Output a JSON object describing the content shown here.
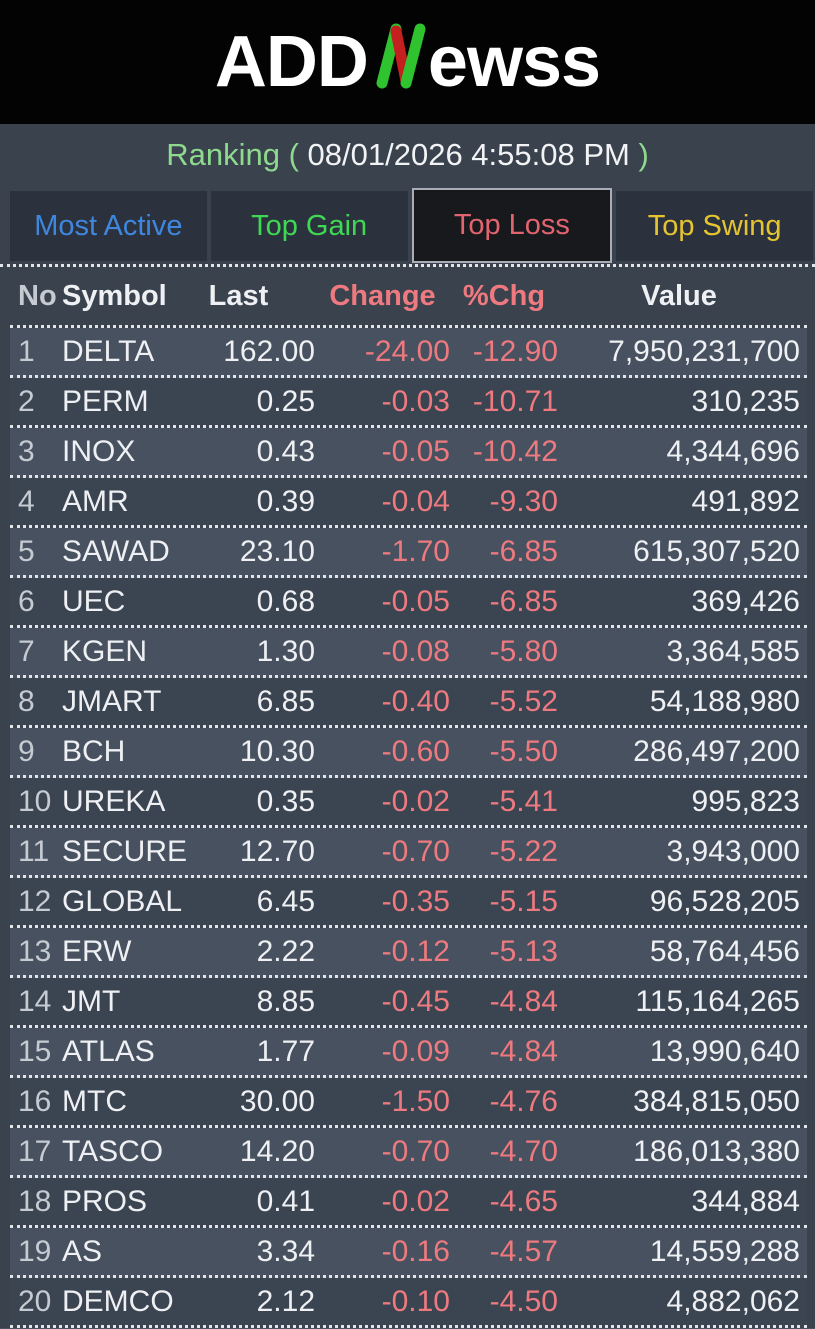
{
  "app": {
    "logo": {
      "prefix": "ADD",
      "n_mark": "N",
      "suffix": "ewss"
    }
  },
  "header": {
    "title": "Ranking",
    "paren_open": " ( ",
    "timestamp": "08/01/2026 4:55:08 PM",
    "paren_close": " )"
  },
  "tabs": [
    {
      "id": "most-active",
      "label": "Most Active",
      "color": "#3f87de",
      "active": false
    },
    {
      "id": "top-gain",
      "label": "Top Gain",
      "color": "#3fd854",
      "active": false
    },
    {
      "id": "top-loss",
      "label": "Top Loss",
      "color": "#e2646f",
      "active": true
    },
    {
      "id": "top-swing",
      "label": "Top Swing",
      "color": "#e5c430",
      "active": false
    }
  ],
  "table": {
    "columns": [
      "No",
      "Symbol",
      "Last",
      "Change",
      "%Chg",
      "Value"
    ],
    "rows": [
      {
        "no": "1",
        "symbol": "DELTA",
        "last": "162.00",
        "change": "-24.00",
        "pct": "-12.90",
        "value": "7,950,231,700"
      },
      {
        "no": "2",
        "symbol": "PERM",
        "last": "0.25",
        "change": "-0.03",
        "pct": "-10.71",
        "value": "310,235"
      },
      {
        "no": "3",
        "symbol": "INOX",
        "last": "0.43",
        "change": "-0.05",
        "pct": "-10.42",
        "value": "4,344,696"
      },
      {
        "no": "4",
        "symbol": "AMR",
        "last": "0.39",
        "change": "-0.04",
        "pct": "-9.30",
        "value": "491,892"
      },
      {
        "no": "5",
        "symbol": "SAWAD",
        "last": "23.10",
        "change": "-1.70",
        "pct": "-6.85",
        "value": "615,307,520"
      },
      {
        "no": "6",
        "symbol": "UEC",
        "last": "0.68",
        "change": "-0.05",
        "pct": "-6.85",
        "value": "369,426"
      },
      {
        "no": "7",
        "symbol": "KGEN",
        "last": "1.30",
        "change": "-0.08",
        "pct": "-5.80",
        "value": "3,364,585"
      },
      {
        "no": "8",
        "symbol": "JMART",
        "last": "6.85",
        "change": "-0.40",
        "pct": "-5.52",
        "value": "54,188,980"
      },
      {
        "no": "9",
        "symbol": "BCH",
        "last": "10.30",
        "change": "-0.60",
        "pct": "-5.50",
        "value": "286,497,200"
      },
      {
        "no": "10",
        "symbol": "UREKA",
        "last": "0.35",
        "change": "-0.02",
        "pct": "-5.41",
        "value": "995,823"
      },
      {
        "no": "11",
        "symbol": "SECURE",
        "last": "12.70",
        "change": "-0.70",
        "pct": "-5.22",
        "value": "3,943,000"
      },
      {
        "no": "12",
        "symbol": "GLOBAL",
        "last": "6.45",
        "change": "-0.35",
        "pct": "-5.15",
        "value": "96,528,205"
      },
      {
        "no": "13",
        "symbol": "ERW",
        "last": "2.22",
        "change": "-0.12",
        "pct": "-5.13",
        "value": "58,764,456"
      },
      {
        "no": "14",
        "symbol": "JMT",
        "last": "8.85",
        "change": "-0.45",
        "pct": "-4.84",
        "value": "115,164,265"
      },
      {
        "no": "15",
        "symbol": "ATLAS",
        "last": "1.77",
        "change": "-0.09",
        "pct": "-4.84",
        "value": "13,990,640"
      },
      {
        "no": "16",
        "symbol": "MTC",
        "last": "30.00",
        "change": "-1.50",
        "pct": "-4.76",
        "value": "384,815,050"
      },
      {
        "no": "17",
        "symbol": "TASCO",
        "last": "14.20",
        "change": "-0.70",
        "pct": "-4.70",
        "value": "186,013,380"
      },
      {
        "no": "18",
        "symbol": "PROS",
        "last": "0.41",
        "change": "-0.02",
        "pct": "-4.65",
        "value": "344,884"
      },
      {
        "no": "19",
        "symbol": "AS",
        "last": "3.34",
        "change": "-0.16",
        "pct": "-4.57",
        "value": "14,559,288"
      },
      {
        "no": "20",
        "symbol": "DEMCO",
        "last": "2.12",
        "change": "-0.10",
        "pct": "-4.50",
        "value": "4,882,062"
      }
    ]
  },
  "colors": {
    "negative": "#ee7a80",
    "title_green": "#8ed98e",
    "header_text": "#b5d3e2",
    "logo_green": "#2fc32f",
    "logo_red": "#c42020",
    "row_odd": "#47515f",
    "row_even": "#3b4451",
    "tab_active_bg": "#17191d"
  }
}
